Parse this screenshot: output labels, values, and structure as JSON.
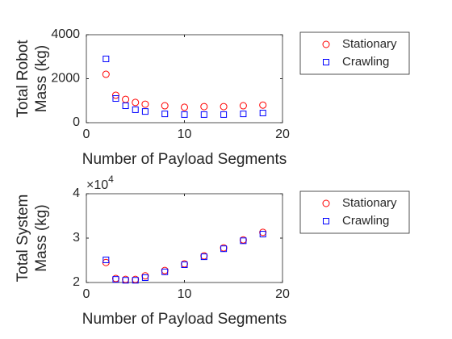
{
  "chart_data": [
    {
      "type": "scatter",
      "ylabel": [
        "Total Robot",
        "Mass (kg)"
      ],
      "xlabel": "Number of Payload Segments",
      "x": [
        2,
        3,
        4,
        5,
        6,
        8,
        10,
        12,
        14,
        16,
        18
      ],
      "series": [
        {
          "name": "Stationary",
          "color": "#ff0000",
          "marker": "o",
          "values": [
            2200,
            1250,
            1060,
            920,
            840,
            770,
            700,
            730,
            730,
            770,
            800
          ]
        },
        {
          "name": "Crawling",
          "color": "#0000ff",
          "marker": "s",
          "values": [
            2900,
            1100,
            770,
            590,
            510,
            400,
            370,
            370,
            370,
            400,
            440
          ]
        }
      ],
      "xlim": [
        0,
        20
      ],
      "xticks": [
        0,
        10,
        20
      ],
      "ylim": [
        0,
        4000
      ],
      "yticks": [
        0,
        2000,
        4000
      ],
      "legend": "northeastoutside"
    },
    {
      "type": "scatter",
      "ylabel": [
        "Total System",
        "Mass (kg)"
      ],
      "xlabel": "Number of Payload Segments",
      "y_multiplier": {
        "base": "×10",
        "exponent": "4"
      },
      "x": [
        2,
        3,
        4,
        5,
        6,
        8,
        10,
        12,
        14,
        16,
        18
      ],
      "series": [
        {
          "name": "Stationary",
          "color": "#ff0000",
          "marker": "o",
          "values": [
            24500,
            20900,
            20700,
            20700,
            21500,
            22700,
            24200,
            26000,
            27800,
            29600,
            31300
          ]
        },
        {
          "name": "Crawling",
          "color": "#0000ff",
          "marker": "s",
          "values": [
            25100,
            20700,
            20500,
            20500,
            21100,
            22400,
            24000,
            25800,
            27600,
            29400,
            30900
          ]
        }
      ],
      "xlim": [
        0,
        20
      ],
      "xticks": [
        0,
        10,
        20
      ],
      "ylim": [
        20000,
        40000
      ],
      "yticks": [
        {
          "value": 20000,
          "label": "2"
        },
        {
          "value": 30000,
          "label": "3"
        },
        {
          "value": 40000,
          "label": "4"
        }
      ],
      "legend": "northeastoutside"
    }
  ]
}
